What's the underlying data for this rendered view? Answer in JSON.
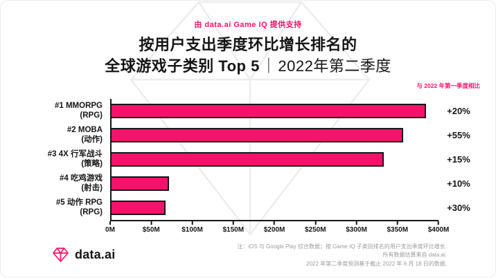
{
  "header": {
    "powered_by": "由 data.ai Game IQ 提供支持",
    "title_line1": "按用户支出季度环比增长排名的",
    "title_line2_bold": "全球游戏子类别 Top 5",
    "title_separator": "｜",
    "title_line2_light": "2022年第二季度",
    "compare_note": "与 2022 年第一季度相比"
  },
  "chart_data": {
    "type": "bar",
    "orientation": "horizontal",
    "title": "按用户支出季度环比增长排名的全球游戏子类别 Top 5｜2022年第二季度",
    "subtitle": "与 2022 年第一季度相比",
    "categories": [
      "#1 MMORPG",
      "#2 MOBA",
      "#3 4X 行军战斗",
      "#4 吃鸡游戏",
      "#5 动作 RPG"
    ],
    "category_genres": [
      "(RPG)",
      "(动作)",
      "(策略)",
      "(射击)",
      "(RPG)"
    ],
    "values_usd_m": [
      385,
      357,
      333,
      70,
      66
    ],
    "data_labels": [
      "+20%",
      "+55%",
      "+15%",
      "+10%",
      "+30%"
    ],
    "xlabel": "",
    "ylabel": "",
    "xlim": [
      0,
      400
    ],
    "x_ticks": [
      "0M",
      "$50M",
      "$100M",
      "$150M",
      "$200M",
      "$250M",
      "$300M",
      "$350M",
      "$400M"
    ],
    "grid": false,
    "legend": false,
    "bar_color": "#F4136B"
  },
  "footer": {
    "brand": "data.ai",
    "notes": [
      "注：iOS 与 Google Play 综合数据；按 Game IQ 子类别排名的用户支出季度环比增长.",
      "所有数据估算来自 data.ai.",
      "2022 年第二季度预测基于截止 2022 年 6 月 18 日的数据."
    ]
  },
  "colors": {
    "accent_pink": "#F4136B",
    "text_dark": "#151515",
    "note_gray": "#9c9c9c",
    "watermark_gray": "#ededed"
  }
}
